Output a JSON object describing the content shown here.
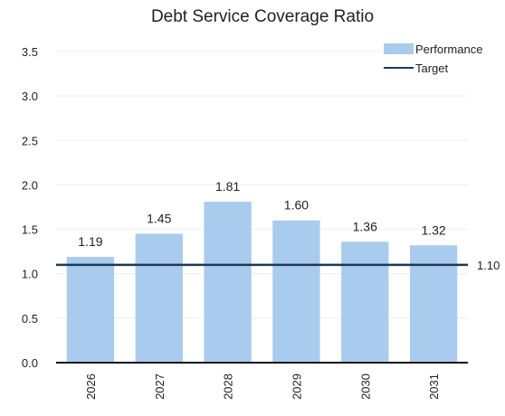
{
  "chart_data": {
    "type": "bar",
    "title": "Debt Service Coverage Ratio",
    "categories": [
      "2026",
      "2027",
      "2028",
      "2029",
      "2030",
      "2031"
    ],
    "series": [
      {
        "name": "Performance",
        "values": [
          1.19,
          1.45,
          1.81,
          1.6,
          1.36,
          1.32
        ],
        "data_labels": [
          "1.19",
          "1.45",
          "1.81",
          "1.60",
          "1.36",
          "1.32"
        ],
        "color": "#a9cbed"
      },
      {
        "name": "Target",
        "type": "line",
        "value": 1.1,
        "data_label": "1.10",
        "color": "#1b3a57"
      }
    ],
    "y_ticks": [
      "0.0",
      "0.5",
      "1.0",
      "1.5",
      "2.0",
      "2.5",
      "3.0",
      "3.5"
    ],
    "ylim": [
      0,
      3.5
    ],
    "xlabel": "",
    "ylabel": "",
    "grid": true,
    "grid_color": "#eeeeee",
    "axis_color": "#111111",
    "legend_position": "top-right"
  }
}
